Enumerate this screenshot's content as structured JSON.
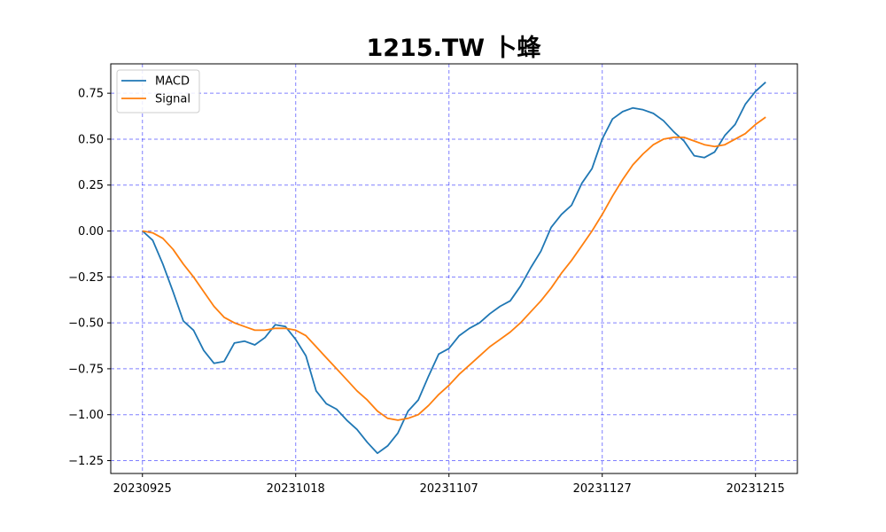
{
  "chart_data": {
    "type": "line",
    "title": "1215.TW 卜蜂",
    "xlabel": "",
    "ylabel": "",
    "x_tick_labels": [
      "20230925",
      "20231018",
      "20231107",
      "20231127",
      "20231215"
    ],
    "x_tick_index": [
      0,
      15,
      30,
      45,
      60
    ],
    "ylim": [
      -1.32,
      0.91
    ],
    "y_ticks": [
      -1.25,
      -1.0,
      -0.75,
      -0.5,
      -0.25,
      0.0,
      0.25,
      0.5,
      0.75
    ],
    "y_tick_labels": [
      "−1.25",
      "−1.00",
      "−0.75",
      "−0.50",
      "−0.25",
      "0.00",
      "0.25",
      "0.50",
      "0.75"
    ],
    "grid": true,
    "grid_color": "#0000ff",
    "legend_position": "upper-left",
    "series": [
      {
        "name": "MACD",
        "color": "#1f77b4",
        "values": [
          0.0,
          -0.05,
          -0.18,
          -0.33,
          -0.49,
          -0.54,
          -0.65,
          -0.72,
          -0.71,
          -0.61,
          -0.6,
          -0.62,
          -0.58,
          -0.51,
          -0.52,
          -0.59,
          -0.68,
          -0.87,
          -0.94,
          -0.97,
          -1.03,
          -1.08,
          -1.15,
          -1.21,
          -1.17,
          -1.1,
          -0.98,
          -0.92,
          -0.79,
          -0.67,
          -0.64,
          -0.57,
          -0.53,
          -0.5,
          -0.45,
          -0.41,
          -0.38,
          -0.3,
          -0.2,
          -0.11,
          0.02,
          0.09,
          0.14,
          0.26,
          0.34,
          0.5,
          0.61,
          0.65,
          0.67,
          0.66,
          0.64,
          0.6,
          0.54,
          0.49,
          0.41,
          0.4,
          0.43,
          0.52,
          0.58,
          0.69,
          0.76,
          0.81
        ]
      },
      {
        "name": "Signal",
        "color": "#ff7f0e",
        "values": [
          0.0,
          -0.01,
          -0.04,
          -0.1,
          -0.18,
          -0.25,
          -0.33,
          -0.41,
          -0.47,
          -0.5,
          -0.52,
          -0.54,
          -0.54,
          -0.53,
          -0.53,
          -0.54,
          -0.57,
          -0.63,
          -0.69,
          -0.75,
          -0.81,
          -0.87,
          -0.92,
          -0.98,
          -1.02,
          -1.03,
          -1.02,
          -1.0,
          -0.95,
          -0.89,
          -0.84,
          -0.78,
          -0.73,
          -0.68,
          -0.63,
          -0.59,
          -0.55,
          -0.5,
          -0.44,
          -0.38,
          -0.31,
          -0.23,
          -0.16,
          -0.08,
          0.0,
          0.09,
          0.19,
          0.28,
          0.36,
          0.42,
          0.47,
          0.5,
          0.51,
          0.51,
          0.49,
          0.47,
          0.46,
          0.47,
          0.5,
          0.53,
          0.58,
          0.62
        ]
      }
    ]
  }
}
